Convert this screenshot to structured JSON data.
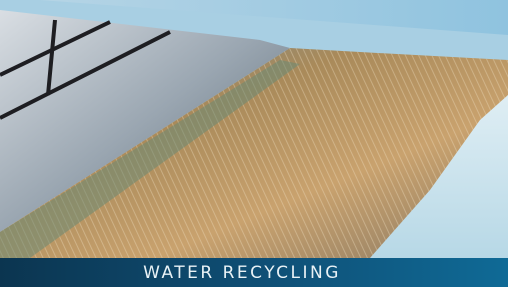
{
  "caption": "WATER RECYCLING"
}
